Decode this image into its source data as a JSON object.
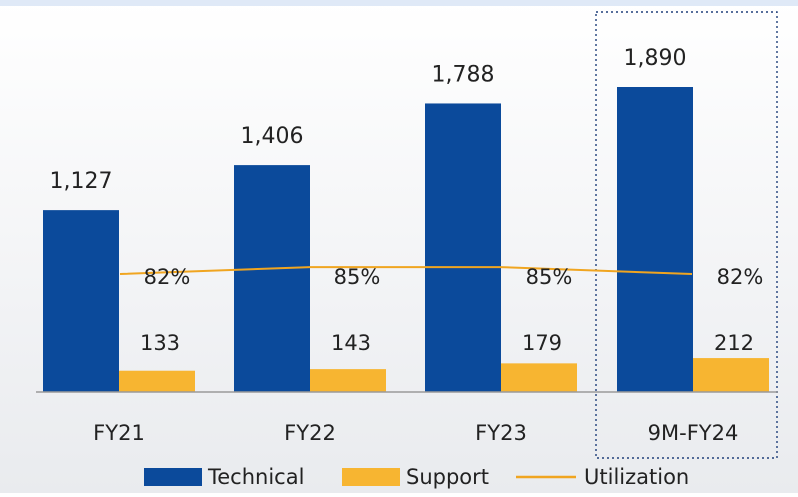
{
  "chart_data": {
    "type": "bar",
    "categories": [
      "FY21",
      "FY22",
      "FY23",
      "9M-FY24"
    ],
    "series": [
      {
        "name": "Technical",
        "values": [
          1127,
          1406,
          1788,
          1890
        ],
        "labels": [
          "1,127",
          "1,406",
          "1,788",
          "1,890"
        ],
        "color": "#0b4a9b"
      },
      {
        "name": "Support",
        "values": [
          133,
          143,
          179,
          212
        ],
        "labels": [
          "133",
          "143",
          "179",
          "212"
        ],
        "color": "#f7b531"
      }
    ],
    "line_series": {
      "name": "Utilization",
      "values": [
        82,
        85,
        85,
        82
      ],
      "labels": [
        "82%",
        "85%",
        "85%",
        "82%"
      ],
      "color": "#f0a520"
    },
    "highlight_category": "9M-FY24",
    "legend_position": "bottom",
    "grid": false
  }
}
